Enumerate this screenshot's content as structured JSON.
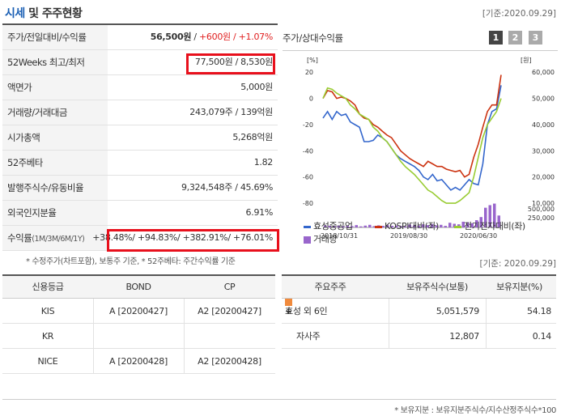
{
  "header": {
    "title_blue": "시세",
    "title_rest": " 및 주주현황",
    "date": "[기준:2020.09.29]"
  },
  "price_table": {
    "rows": [
      {
        "label": "주가/전일대비/수익률",
        "value_main": "56,500원",
        "value_sep": " / ",
        "value_change": "+600원 / +1.07%"
      },
      {
        "label": "52Weeks 최고/최저",
        "value": "77,500원 / 8,530원"
      },
      {
        "label": "액면가",
        "value": "5,000원"
      },
      {
        "label": "거래량/거래대금",
        "value": "243,079주 / 139억원"
      },
      {
        "label": "시가총액",
        "value": "5,268억원"
      },
      {
        "label": "52주베타",
        "value": "1.82"
      },
      {
        "label": "발행주식수/유동비율",
        "value": "9,324,548주 / 45.69%"
      },
      {
        "label": "외국인지분율",
        "value": "6.91%"
      },
      {
        "label": "수익률",
        "label_small": "(1M/3M/6M/1Y)",
        "value": "+38.48%/ +94.83%/ +382.91%/ +76.01%"
      }
    ],
    "note": "* 수정주가(차트포함), 보통주 기준, * 52주베타: 주간수익률 기준"
  },
  "chart_panel": {
    "title": "주가/상대수익률",
    "tabs": [
      "1",
      "2",
      "3"
    ],
    "active_tab": "1",
    "colors": {
      "tab_active": "#444444",
      "tab_inactive": "#aaaaaa",
      "series1": "#3366cc",
      "series2": "#cc3311",
      "series3": "#99cc33",
      "volume": "#9966cc"
    }
  },
  "chart_data": {
    "type": "line",
    "left_axis_unit": "[%]",
    "right_axis_unit": "[원]",
    "left_ticks": [
      "20",
      "0",
      "-20",
      "-40",
      "-60",
      "-80"
    ],
    "right_ticks": [
      "60,000",
      "50,000",
      "40,000",
      "30,000",
      "20,000",
      "10,000"
    ],
    "volume_ticks": [
      "500,000",
      "250,000"
    ],
    "x_ticks": [
      "2018/10/31",
      "2019/08/30",
      "2020/06/30"
    ],
    "ylim": [
      -88,
      22
    ],
    "volume_max": 500000,
    "series": [
      {
        "name": "효성중공업",
        "values": [
          -15,
          -10,
          -16,
          -10,
          -13,
          -12,
          -18,
          -20,
          -22,
          -33,
          -33,
          -32,
          -28,
          -30,
          -33,
          -38,
          -43,
          -46,
          -48,
          -50,
          -52,
          -55,
          -60,
          -62,
          -58,
          -63,
          -62,
          -66,
          -70,
          -68,
          -70,
          -66,
          -62,
          -65,
          -66,
          -50,
          -20,
          -10,
          -8,
          10
        ]
      },
      {
        "name": "KOSPI대비(좌)",
        "values": [
          0,
          6,
          5,
          0,
          1,
          0,
          -2,
          -5,
          -12,
          -15,
          -16,
          -20,
          -22,
          -25,
          -28,
          -30,
          -35,
          -40,
          -43,
          -46,
          -48,
          -50,
          -52,
          -48,
          -50,
          -52,
          -52,
          -54,
          -55,
          -56,
          -55,
          -60,
          -58,
          -45,
          -35,
          -22,
          -10,
          -5,
          -5,
          18
        ]
      },
      {
        "name": "전기전자대비(좌)",
        "values": [
          0,
          8,
          7,
          4,
          2,
          0,
          -5,
          -8,
          -12,
          -14,
          -16,
          -22,
          -25,
          -30,
          -33,
          -38,
          -43,
          -48,
          -52,
          -55,
          -58,
          -62,
          -66,
          -70,
          -72,
          -75,
          -78,
          -80,
          -80,
          -80,
          -78,
          -75,
          -72,
          -60,
          -45,
          -30,
          -20,
          -15,
          -10,
          0
        ]
      }
    ],
    "volume": [
      {
        "name": "거래량",
        "values": [
          40000,
          30000,
          25000,
          35000,
          20000,
          30000,
          25000,
          45000,
          20000,
          35000,
          50000,
          25000,
          40000,
          30000,
          45000,
          30000,
          35000,
          25000,
          20000,
          55000,
          40000,
          35000,
          60000,
          45000,
          65000,
          40000,
          50000,
          30000,
          90000,
          70000,
          60000,
          110000,
          100000,
          80000,
          140000,
          200000,
          380000,
          430000,
          460000,
          230000
        ]
      }
    ],
    "legend": [
      {
        "label": "효성중공업",
        "kind": "line"
      },
      {
        "label": "KOSPI대비(좌)",
        "kind": "line"
      },
      {
        "label": "전기전자대비(좌)",
        "kind": "line"
      },
      {
        "label": "거래량",
        "kind": "bar"
      }
    ]
  },
  "date2": "[기준: 2020.09.29]",
  "credit_table": {
    "headers": [
      "신용등급",
      "BOND",
      "CP"
    ],
    "rows": [
      [
        "KIS",
        "A [20200427]",
        "A2 [20200427]"
      ],
      [
        "KR",
        "",
        ""
      ],
      [
        "NICE",
        "A [20200428]",
        "A2 [20200428]"
      ]
    ]
  },
  "holder_table": {
    "headers": [
      "주요주주",
      "보유주식수(보통)",
      "보유지분(%)"
    ],
    "rows": [
      [
        "효성 외 6인",
        "5,051,579",
        "54.18"
      ],
      [
        "자사주",
        "12,807",
        "0.14"
      ]
    ],
    "note": "* 보유지분 : 보유지분주식수/지수산정주식수*100"
  }
}
